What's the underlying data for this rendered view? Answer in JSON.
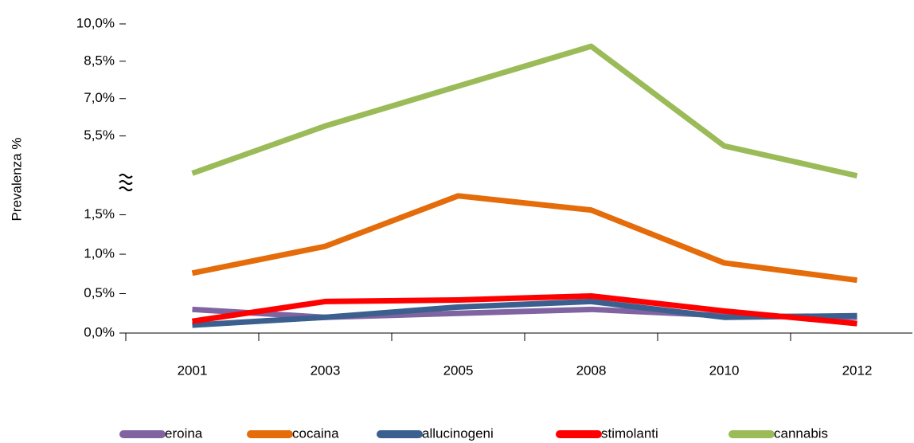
{
  "chart_data": {
    "type": "line",
    "y_label": "Prevalenza %",
    "categories": [
      "2001",
      "2003",
      "2005",
      "2008",
      "2010",
      "2012"
    ],
    "ylim": [
      0,
      10
    ],
    "y_break": [
      1.9,
      3.6
    ],
    "yticks": [
      {
        "value": 0,
        "label": "0,0%"
      },
      {
        "value": 0.5,
        "label": "0,5%"
      },
      {
        "value": 1.0,
        "label": "1,0%"
      },
      {
        "value": 1.5,
        "label": "1,5%"
      },
      {
        "value": 5.5,
        "label": "5,5%"
      },
      {
        "value": 7.0,
        "label": "7,0%"
      },
      {
        "value": 8.5,
        "label": "8,5%"
      },
      {
        "value": 10.0,
        "label": "10,0%"
      }
    ],
    "legend_position": "bottom",
    "series": [
      {
        "name": "eroina",
        "color": "#8064a2",
        "values": [
          0.3,
          0.2,
          0.25,
          0.3,
          0.22,
          0.2
        ]
      },
      {
        "name": "cocaina",
        "color": "#e46c0a",
        "values": [
          0.76,
          1.1,
          1.74,
          1.56,
          0.89,
          0.67
        ]
      },
      {
        "name": "allucinogeni",
        "color": "#3b5f8e",
        "values": [
          0.1,
          0.2,
          0.33,
          0.4,
          0.2,
          0.22
        ]
      },
      {
        "name": "stimolanti",
        "color": "#ff0000",
        "values": [
          0.15,
          0.4,
          0.42,
          0.47,
          0.28,
          0.12
        ]
      },
      {
        "name": "cannabis",
        "color": "#9bbb59",
        "values": [
          4.0,
          5.9,
          7.5,
          9.1,
          5.1,
          3.9
        ]
      }
    ]
  }
}
